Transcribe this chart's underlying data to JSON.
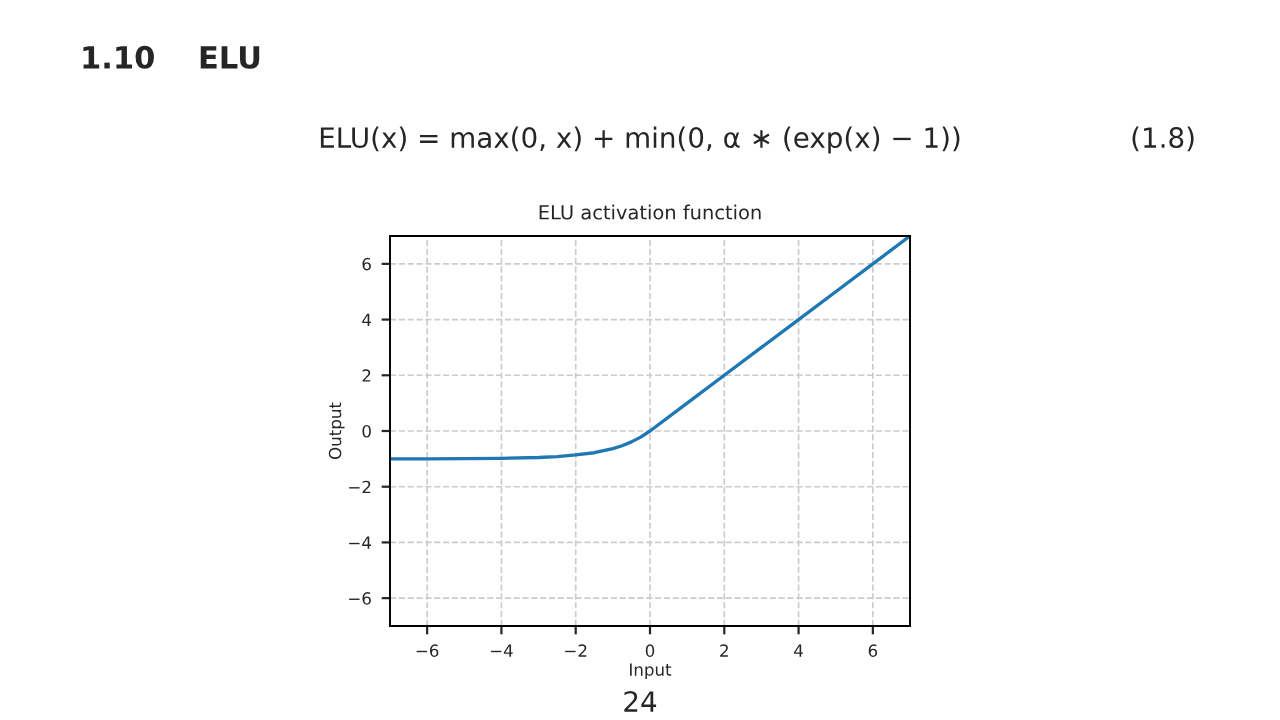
{
  "chart_data": {
    "type": "line",
    "title": "ELU activation function",
    "xlabel": "Input",
    "ylabel": "Output",
    "annotations": [
      "1.10    ELU",
      "ELU(x) = max(0, x) + min(0, α ∗ (exp(x) − 1))",
      "(1.8)",
      "24"
    ],
    "x": [
      -7,
      -6,
      -5,
      -4,
      -3,
      -2.5,
      -2,
      -1.5,
      -1,
      -0.75,
      -0.5,
      -0.25,
      0,
      1,
      2,
      3,
      4,
      5,
      6,
      7
    ],
    "series": [
      {
        "color": "#1f77b4",
        "values": [
          -1.0,
          -1.0,
          -0.99,
          -0.98,
          -0.95,
          -0.92,
          -0.86,
          -0.78,
          -0.63,
          -0.53,
          -0.39,
          -0.22,
          0,
          1,
          2,
          3,
          4,
          5,
          6,
          7
        ]
      }
    ],
    "xlim": [
      -7,
      7
    ],
    "ylim": [
      -7,
      7
    ],
    "xticks": [
      -6,
      -4,
      -2,
      0,
      2,
      4,
      6
    ],
    "yticks": [
      -6,
      -4,
      -2,
      0,
      2,
      4,
      6
    ],
    "grid": true,
    "line_style": "solid",
    "marker": "none"
  }
}
